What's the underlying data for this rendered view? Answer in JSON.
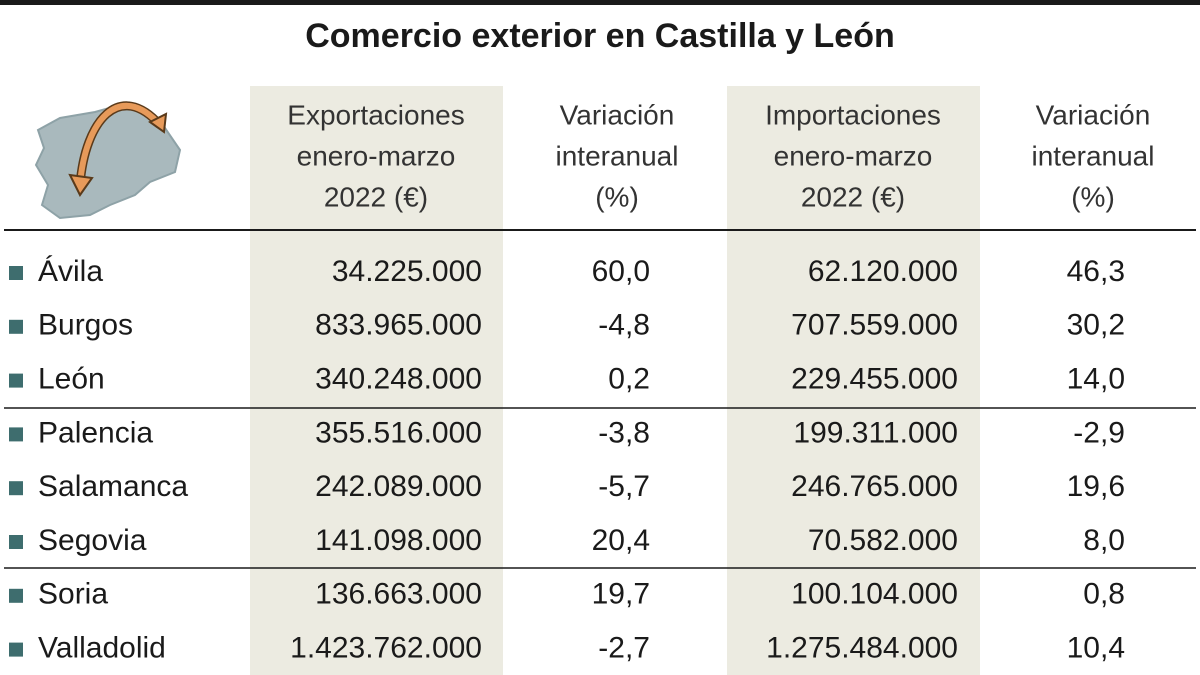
{
  "title": "Comercio exterior en Castilla y León",
  "table": {
    "header": [
      [
        "Exportaciones",
        "enero-marzo",
        "2022 (€)"
      ],
      [
        "Variación",
        "interanual",
        "(%)"
      ],
      [
        "Importaciones",
        "enero-marzo",
        "2022 (€)"
      ],
      [
        "Variación",
        "interanual",
        "(%)"
      ]
    ],
    "rows": [
      [
        "Ávila",
        "34.225.000",
        "60,0",
        "62.120.000",
        "46,3"
      ],
      [
        "Burgos",
        "833.965.000",
        "-4,8",
        "707.559.000",
        "30,2"
      ],
      [
        "León",
        "340.248.000",
        "0,2",
        "229.455.000",
        "14,0"
      ],
      [
        "Palencia",
        "355.516.000",
        "-3,8",
        "199.311.000",
        "-2,9"
      ],
      [
        "Salamanca",
        "242.089.000",
        "-5,7",
        "246.765.000",
        "19,6"
      ],
      [
        "Segovia",
        "141.098.000",
        "20,4",
        "70.582.000",
        "8,0"
      ],
      [
        "Soria",
        "136.663.000",
        "19,7",
        "100.104.000",
        "0,8"
      ],
      [
        "Valladolid",
        "1.423.762.000",
        "-2,7",
        "1.275.484.000",
        "10,4"
      ]
    ]
  }
}
